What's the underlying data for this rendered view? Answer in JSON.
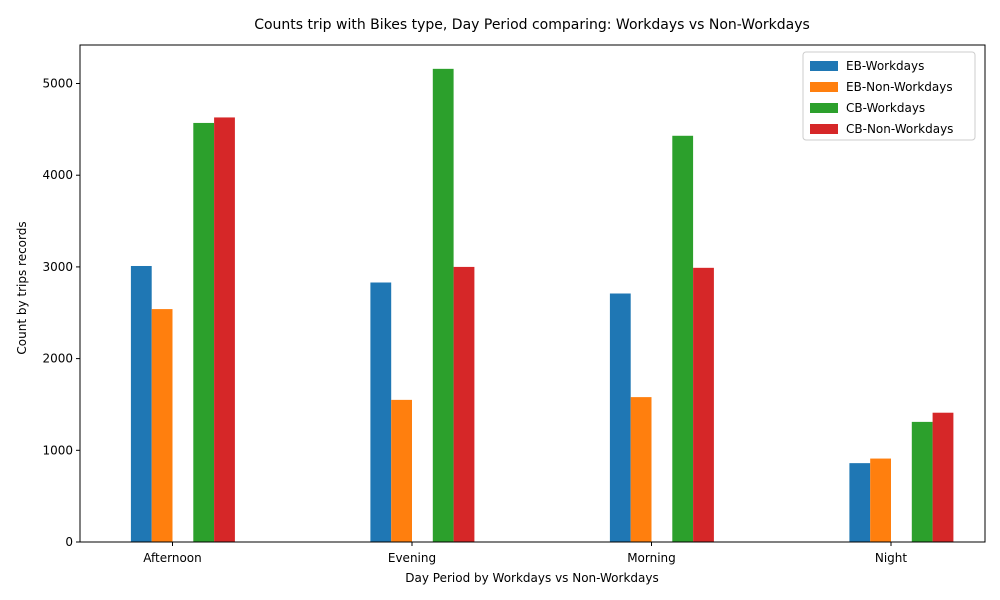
{
  "chart_data": {
    "type": "bar",
    "title": "Counts trip with Bikes type, Day Period comparing: Workdays vs Non-Workdays",
    "xlabel": "Day Period by Workdays vs Non-Workdays",
    "ylabel": "Count by trips records",
    "categories": [
      "Afternoon",
      "Evening",
      "Morning",
      "Night"
    ],
    "ylim": [
      0,
      5420
    ],
    "yticks": [
      0,
      1000,
      2000,
      3000,
      4000,
      5000
    ],
    "grid": false,
    "legend_position": "top-right",
    "series": [
      {
        "name": "EB-Workdays",
        "color": "#1f77b4",
        "values": [
          3010,
          2830,
          2710,
          860
        ]
      },
      {
        "name": "EB-Non-Workdays",
        "color": "#ff7f0e",
        "values": [
          2540,
          1550,
          1580,
          910
        ]
      },
      {
        "name": "CB-Workdays",
        "color": "#2ca02c",
        "values": [
          4570,
          5160,
          4430,
          1310
        ]
      },
      {
        "name": "CB-Non-Workdays",
        "color": "#d62728",
        "values": [
          4630,
          3000,
          2990,
          1410
        ]
      }
    ]
  }
}
